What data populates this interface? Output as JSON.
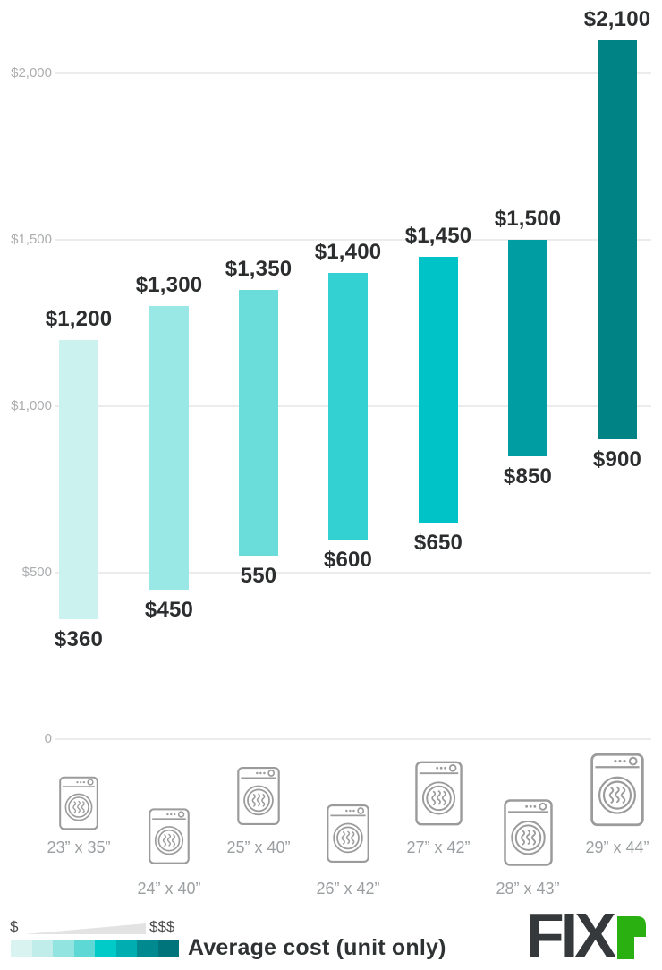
{
  "chart_data": {
    "type": "bar",
    "subtype": "floating-range-columns",
    "title": "Average cost (unit only)",
    "grid": "horizontal",
    "categories": [
      "23” x 35”",
      "24” x 40”",
      "25” x 40”",
      "26” x 42”",
      "27” x 42”",
      "28” x 43”",
      "29” x 44”"
    ],
    "series": [
      {
        "name": "Average cost (unit only)",
        "ranges": [
          [
            360,
            1200
          ],
          [
            450,
            1300
          ],
          [
            550,
            1350
          ],
          [
            600,
            1400
          ],
          [
            650,
            1450
          ],
          [
            850,
            1500
          ],
          [
            900,
            2100
          ]
        ]
      }
    ],
    "bars": [
      {
        "min": 360,
        "max": 1200,
        "min_label": "$360",
        "max_label": "$1,200",
        "color": "#cbf2ef"
      },
      {
        "min": 450,
        "max": 1300,
        "min_label": "$450",
        "max_label": "$1,300",
        "color": "#99e8e5"
      },
      {
        "min": 550,
        "max": 1350,
        "min_label": "550",
        "max_label": "$1,350",
        "color": "#6adddb"
      },
      {
        "min": 600,
        "max": 1400,
        "min_label": "$600",
        "max_label": "$1,400",
        "color": "#33d1d1"
      },
      {
        "min": 650,
        "max": 1450,
        "min_label": "$650",
        "max_label": "$1,450",
        "color": "#00c3c7"
      },
      {
        "min": 850,
        "max": 1500,
        "min_label": "$850",
        "max_label": "$1,500",
        "color": "#009ea2"
      },
      {
        "min": 900,
        "max": 2100,
        "min_label": "$900",
        "max_label": "$2,100",
        "color": "#008384"
      }
    ],
    "y_axis": {
      "range": [
        0,
        2100
      ],
      "ticks": [
        {
          "value": 2000,
          "label": "$2,000"
        },
        {
          "value": 1500,
          "label": "$1,500"
        },
        {
          "value": 1000,
          "label": "$1,000"
        },
        {
          "value": 500,
          "label": "$500"
        },
        {
          "value": 0,
          "label": "0"
        }
      ]
    },
    "legend_position": "bottom-left"
  },
  "legend": {
    "low_symbol": "$",
    "high_symbol": "$$$",
    "label": "Average cost (unit only)",
    "gradient": [
      "#d8f3f0",
      "#c0edea",
      "#92e4e1",
      "#5ed8d5",
      "#00cbc8",
      "#00aeb1",
      "#00898e",
      "#00747b"
    ]
  },
  "footer_logo": {
    "text_dark": "FIX"
  }
}
